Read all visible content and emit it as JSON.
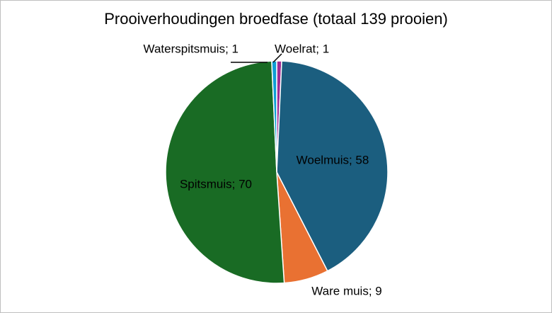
{
  "chart_data": {
    "type": "pie",
    "title": "Prooiverhoudingen broedfase (totaal 139 prooien)",
    "categories": [
      "Woelrat",
      "Woelmuis",
      "Ware muis",
      "Spitsmuis",
      "Waterspitsmuis"
    ],
    "values": [
      1,
      58,
      9,
      70,
      1
    ],
    "value_labels": [
      "Woelrat; 1",
      "Woelmuis; 58",
      "Ware muis; 9",
      "Spitsmuis; 70",
      "Waterspitsmuis; 1"
    ],
    "colors": [
      "#a02b93",
      "#1b5e7f",
      "#e97132",
      "#196b24",
      "#0f9ed5"
    ]
  }
}
